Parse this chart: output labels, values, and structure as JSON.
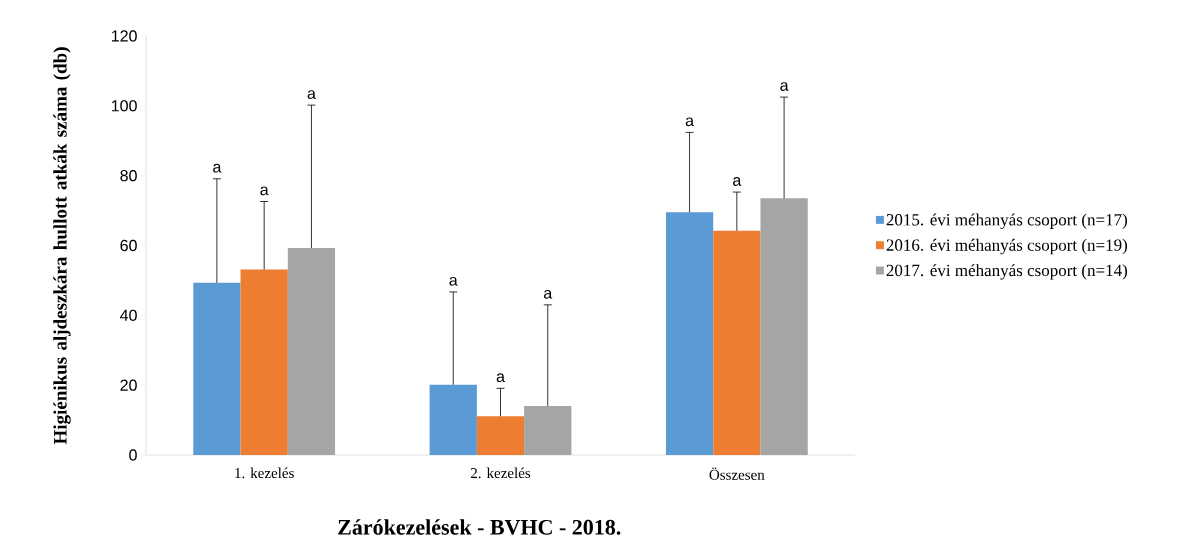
{
  "chart_data": {
    "type": "bar",
    "xlabel": "Zárókezelések - BVHC - 2018.",
    "ylabel": "Higiénikus aljdeszkára hullott atkák száma (db)",
    "categories": [
      "1. kezelés",
      "2. kezelés",
      "Összesen"
    ],
    "series": [
      {
        "name": "2015. évi méhanyás csoport (n=17)",
        "color": "#5b9bd5",
        "values": [
          49.3,
          20.1,
          69.5
        ],
        "errors": [
          [
            49.3,
            79.1
          ],
          [
            20.1,
            46.7
          ],
          [
            69.5,
            92.4
          ]
        ]
      },
      {
        "name": "2016. évi méhanyás csoport (n=19)",
        "color": "#ed7d31",
        "values": [
          53.1,
          11.1,
          64.2
        ],
        "errors": [
          [
            53.1,
            72.6
          ],
          [
            11.1,
            19.1
          ],
          [
            64.2,
            75.3
          ]
        ]
      },
      {
        "name": "2017. évi méhanyás csoport (n=14)",
        "color": "#a5a5a5",
        "values": [
          59.3,
          14.0,
          73.5
        ],
        "errors": [
          [
            59.3,
            100.2
          ],
          [
            14.0,
            43.0
          ],
          [
            73.5,
            102.5
          ]
        ]
      }
    ],
    "ylim": [
      0,
      120
    ],
    "yticks": [
      0,
      20,
      40,
      60,
      80,
      100,
      120
    ],
    "legend": "right",
    "grid": false,
    "annotations": [
      "a",
      "a",
      "a",
      "a",
      "a",
      "a",
      "a",
      "a",
      "a"
    ]
  }
}
